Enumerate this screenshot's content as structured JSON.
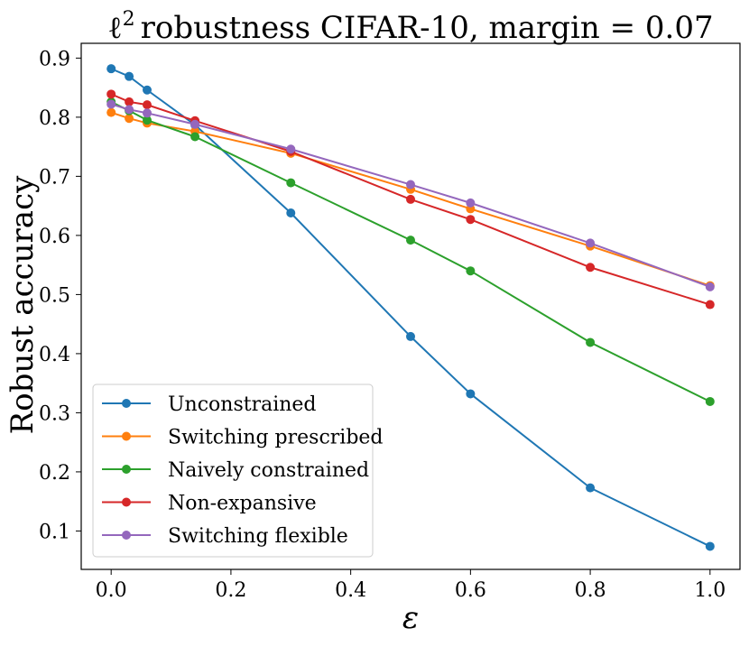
{
  "chart_data": {
    "type": "line",
    "title_main": "robustness CIFAR-10, margin = 0.07",
    "title_prefix": "ℓ",
    "title_sup": "2",
    "xlabel": "ε",
    "ylabel": "Robust accuracy",
    "xlim": [
      -0.05,
      1.05
    ],
    "ylim": [
      0.035,
      0.925
    ],
    "xticks": [
      0.0,
      0.2,
      0.4,
      0.6,
      0.8,
      1.0
    ],
    "xtick_labels": [
      "0.0",
      "0.2",
      "0.4",
      "0.6",
      "0.8",
      "1.0"
    ],
    "yticks": [
      0.1,
      0.2,
      0.3,
      0.4,
      0.5,
      0.6,
      0.7,
      0.8,
      0.9
    ],
    "ytick_labels": [
      "0.1",
      "0.2",
      "0.3",
      "0.4",
      "0.5",
      "0.6",
      "0.7",
      "0.8",
      "0.9"
    ],
    "x": [
      0.0,
      0.03,
      0.06,
      0.14,
      0.3,
      0.5,
      0.6,
      0.8,
      1.0
    ],
    "legend_position": "lower-left",
    "grid": false,
    "series": [
      {
        "name": "Unconstrained",
        "color": "#1f77b4",
        "values": [
          0.882,
          0.869,
          0.846,
          0.787,
          0.638,
          0.429,
          0.332,
          0.173,
          0.074
        ]
      },
      {
        "name": "Switching prescribed",
        "color": "#ff7f0e",
        "values": [
          0.808,
          0.798,
          0.79,
          0.776,
          0.739,
          0.678,
          0.645,
          0.582,
          0.515
        ]
      },
      {
        "name": "Naively constrained",
        "color": "#2ca02c",
        "values": [
          0.826,
          0.811,
          0.795,
          0.767,
          0.689,
          0.592,
          0.54,
          0.419,
          0.319
        ]
      },
      {
        "name": "Non-expansive",
        "color": "#d62728",
        "values": [
          0.839,
          0.826,
          0.821,
          0.794,
          0.742,
          0.661,
          0.627,
          0.546,
          0.483
        ]
      },
      {
        "name": "Switching flexible",
        "color": "#9467bd",
        "values": [
          0.822,
          0.813,
          0.807,
          0.788,
          0.746,
          0.686,
          0.655,
          0.587,
          0.513
        ]
      }
    ]
  }
}
